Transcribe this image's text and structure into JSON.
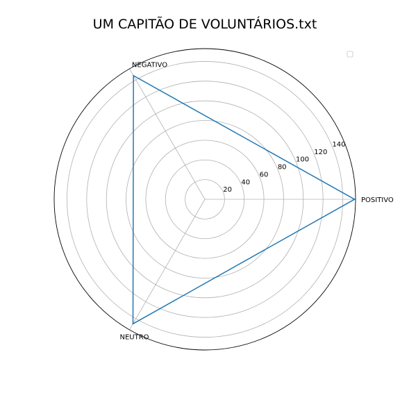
{
  "chart_data": {
    "type": "radar",
    "title": "UM CAPITÃO DE VOLUNTÁRIOS.txt",
    "categories": [
      "POSITIVO",
      "NEGATIVO",
      "NEUTRO"
    ],
    "series": [
      {
        "values": [
          152,
          145,
          146
        ],
        "color": "#1f77b4"
      }
    ],
    "radial_ticks": [
      20,
      40,
      60,
      80,
      100,
      120,
      140
    ],
    "rlim": [
      0,
      153
    ],
    "grid": true,
    "legend": {
      "entries": [],
      "placement": "top-right"
    }
  }
}
